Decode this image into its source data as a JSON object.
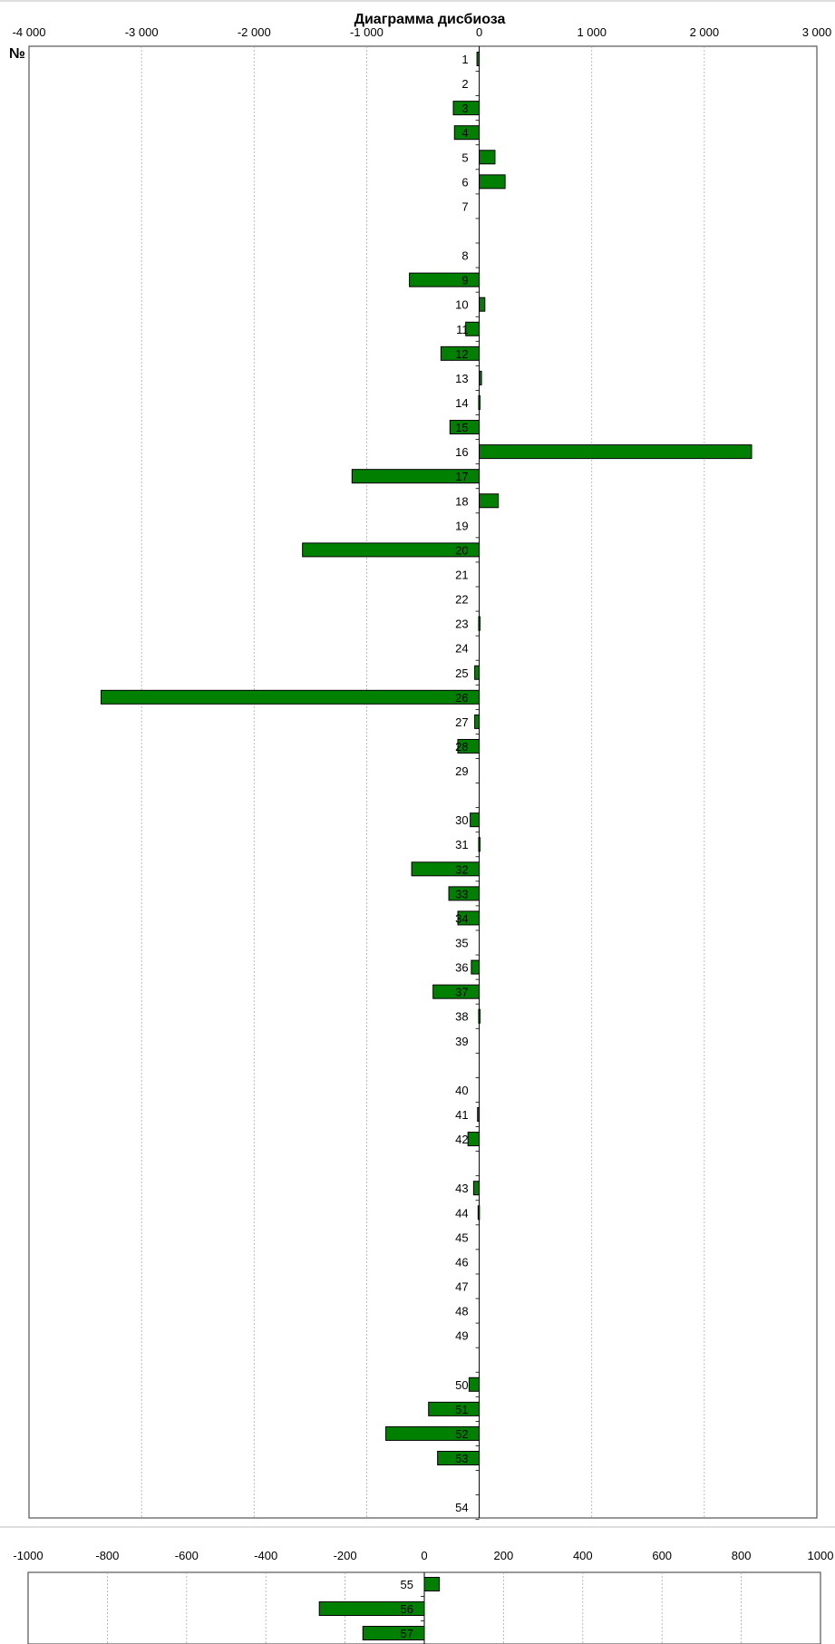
{
  "chart_data": [
    {
      "type": "bar",
      "orientation": "horizontal",
      "title": "Диаграмма дисбиоза",
      "row_header": "№",
      "xlim": [
        -4000,
        3000
      ],
      "xticks": [
        -4000,
        -3000,
        -2000,
        -1000,
        0,
        1000,
        2000,
        3000
      ],
      "tick_labels": [
        "-4 000",
        "-3 000",
        "-2 000",
        "-1 000",
        "0",
        "1 000",
        "2 000",
        "3 000"
      ],
      "grid": true,
      "bar_color": "#008000",
      "rows": [
        {
          "label": "1",
          "value": -20
        },
        {
          "label": "2",
          "value": 0
        },
        {
          "label": "3",
          "value": -230
        },
        {
          "label": "4",
          "value": -220
        },
        {
          "label": "5",
          "value": 140
        },
        {
          "label": "6",
          "value": 230
        },
        {
          "label": "7",
          "value": 0
        },
        {
          "label": "",
          "value": null
        },
        {
          "label": "8",
          "value": 0
        },
        {
          "label": "9",
          "value": -620
        },
        {
          "label": "10",
          "value": 50
        },
        {
          "label": "11",
          "value": -120
        },
        {
          "label": "12",
          "value": -340
        },
        {
          "label": "13",
          "value": 20
        },
        {
          "label": "14",
          "value": -5
        },
        {
          "label": "15",
          "value": -260
        },
        {
          "label": "16",
          "value": 2420
        },
        {
          "label": "17",
          "value": -1130
        },
        {
          "label": "18",
          "value": 170
        },
        {
          "label": "19",
          "value": 0
        },
        {
          "label": "20",
          "value": -1570
        },
        {
          "label": "21",
          "value": 0
        },
        {
          "label": "22",
          "value": 0
        },
        {
          "label": "23",
          "value": -5
        },
        {
          "label": "24",
          "value": 0
        },
        {
          "label": "25",
          "value": -40
        },
        {
          "label": "26",
          "value": -3360
        },
        {
          "label": "27",
          "value": -40
        },
        {
          "label": "28",
          "value": -190
        },
        {
          "label": "29",
          "value": 0
        },
        {
          "label": "",
          "value": null
        },
        {
          "label": "30",
          "value": -80
        },
        {
          "label": "31",
          "value": -5
        },
        {
          "label": "32",
          "value": -600
        },
        {
          "label": "33",
          "value": -270
        },
        {
          "label": "34",
          "value": -190
        },
        {
          "label": "35",
          "value": 0
        },
        {
          "label": "36",
          "value": -70
        },
        {
          "label": "37",
          "value": -410
        },
        {
          "label": "38",
          "value": -5
        },
        {
          "label": "39",
          "value": 0
        },
        {
          "label": "",
          "value": null
        },
        {
          "label": "40",
          "value": 0
        },
        {
          "label": "41",
          "value": -15
        },
        {
          "label": "42",
          "value": -100
        },
        {
          "label": "",
          "value": null
        },
        {
          "label": "43",
          "value": -50
        },
        {
          "label": "44",
          "value": -10
        },
        {
          "label": "45",
          "value": 0
        },
        {
          "label": "46",
          "value": 0
        },
        {
          "label": "47",
          "value": 0
        },
        {
          "label": "48",
          "value": 0
        },
        {
          "label": "49",
          "value": 0
        },
        {
          "label": "",
          "value": null
        },
        {
          "label": "50",
          "value": -90
        },
        {
          "label": "51",
          "value": -450
        },
        {
          "label": "52",
          "value": -830
        },
        {
          "label": "53",
          "value": -370
        },
        {
          "label": "",
          "value": null
        },
        {
          "label": "54",
          "value": 0
        }
      ]
    },
    {
      "type": "bar",
      "orientation": "horizontal",
      "xlim": [
        -1000,
        1000
      ],
      "xticks": [
        -1000,
        -800,
        -600,
        -400,
        -200,
        0,
        200,
        400,
        600,
        800,
        1000
      ],
      "tick_labels": [
        "-1000",
        "-800",
        "-600",
        "-400",
        "-200",
        "0",
        "200",
        "400",
        "600",
        "800",
        "1000"
      ],
      "grid": true,
      "bar_color": "#008000",
      "rows": [
        {
          "label": "55",
          "value": 38
        },
        {
          "label": "56",
          "value": -265
        },
        {
          "label": "57",
          "value": -155
        }
      ]
    }
  ]
}
